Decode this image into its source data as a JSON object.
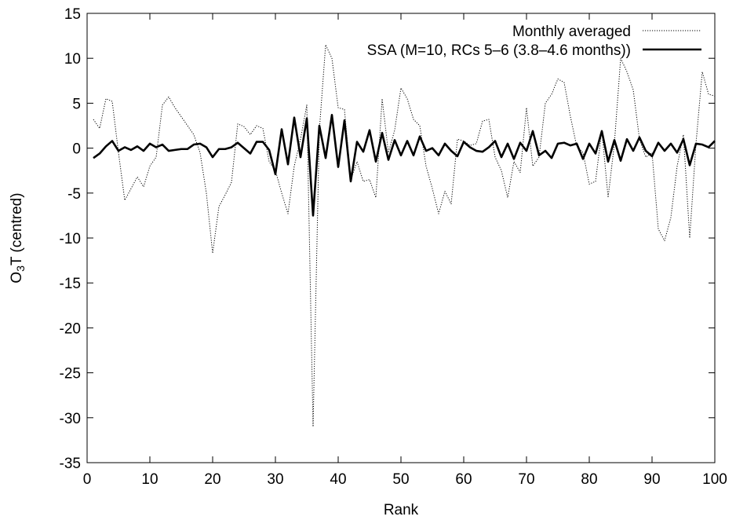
{
  "chart_data": {
    "type": "line",
    "xlabel": "Rank",
    "ylabel": {
      "main": "O",
      "sub": "3",
      "rest": "T (centred)"
    },
    "xlim": [
      0,
      100
    ],
    "ylim": [
      -35,
      15
    ],
    "xticks": [
      0,
      10,
      20,
      30,
      40,
      50,
      60,
      70,
      80,
      90,
      100
    ],
    "yticks": [
      -35,
      -30,
      -25,
      -20,
      -15,
      -10,
      -5,
      0,
      5,
      10,
      15
    ],
    "legend": "top-right",
    "x": [
      1,
      2,
      3,
      4,
      5,
      6,
      7,
      8,
      9,
      10,
      11,
      12,
      13,
      14,
      15,
      16,
      17,
      18,
      19,
      20,
      21,
      22,
      23,
      24,
      25,
      26,
      27,
      28,
      29,
      30,
      31,
      32,
      33,
      34,
      35,
      36,
      37,
      38,
      39,
      40,
      41,
      42,
      43,
      44,
      45,
      46,
      47,
      48,
      49,
      50,
      51,
      52,
      53,
      54,
      55,
      56,
      57,
      58,
      59,
      60,
      61,
      62,
      63,
      64,
      65,
      66,
      67,
      68,
      69,
      70,
      71,
      72,
      73,
      74,
      75,
      76,
      77,
      78,
      79,
      80,
      81,
      82,
      83,
      84,
      85,
      86,
      87,
      88,
      89,
      90,
      91,
      92,
      93,
      94,
      95,
      96,
      97,
      98,
      99,
      100
    ],
    "series": [
      {
        "name": "Monthly averaged",
        "color": "#000000",
        "style": "dotted",
        "values": [
          3.2,
          2.2,
          5.5,
          5.2,
          -0.5,
          -5.8,
          -4.5,
          -3.2,
          -4.3,
          -2,
          -1,
          4.8,
          5.7,
          4.5,
          3.5,
          2.5,
          1.5,
          -0.5,
          -5,
          -11.7,
          -6.5,
          -5.2,
          -3.8,
          2.7,
          2.4,
          1.5,
          2.5,
          2.2,
          -1.5,
          -2.5,
          -5,
          -7.3,
          -2,
          1,
          4.8,
          -31,
          2,
          11.5,
          10,
          4.5,
          4.3,
          -3.5,
          -1.5,
          -3.7,
          -3.5,
          -5.5,
          5.5,
          -0.5,
          2,
          6.7,
          5.5,
          3.2,
          2.5,
          -2,
          -4.5,
          -7.3,
          -4.8,
          -6.2,
          1,
          0.8,
          0.3,
          0.5,
          3,
          3.2,
          -1,
          -2.5,
          -5.5,
          -1.5,
          -2.7,
          4.5,
          -2,
          -1,
          5,
          6,
          7.7,
          7.3,
          3.5,
          0.2,
          -0.5,
          -4,
          -3.7,
          2,
          -5.5,
          0.5,
          10,
          8.5,
          6.5,
          1,
          -1,
          -0.5,
          -9,
          -10.3,
          -7.7,
          -2,
          1.5,
          -10,
          0.5,
          8.5,
          6,
          5.8
        ]
      },
      {
        "name": "SSA (M=10, RCs 5–6 (3.8–4.6 months))",
        "color": "#000000",
        "style": "solid",
        "values": [
          -1.1,
          -0.6,
          0.2,
          0.8,
          -0.3,
          0.1,
          -0.2,
          0.2,
          -0.3,
          0.5,
          0.1,
          0.4,
          -0.3,
          -0.2,
          -0.1,
          -0.1,
          0.4,
          0.5,
          0.1,
          -1,
          -0.1,
          -0.1,
          0.1,
          0.6,
          0,
          -0.6,
          0.7,
          0.7,
          -0.2,
          -2.9,
          2.1,
          -1.8,
          3.4,
          -1,
          3.3,
          -7.5,
          2.5,
          -1.1,
          3.7,
          -2.1,
          3.1,
          -3.7,
          0.7,
          -0.4,
          2,
          -1.5,
          1.7,
          -1.3,
          0.9,
          -0.8,
          0.8,
          -0.8,
          1.3,
          -0.3,
          0,
          -0.8,
          0.5,
          -0.3,
          -0.9,
          0.7,
          0.1,
          -0.3,
          -0.4,
          0.1,
          0.8,
          -1,
          0.5,
          -1.2,
          0.6,
          -0.3,
          1.9,
          -0.8,
          -0.3,
          -1.1,
          0.5,
          0.6,
          0.3,
          0.5,
          -1.2,
          0.5,
          -0.6,
          1.9,
          -1.5,
          0.9,
          -1.4,
          1,
          -0.3,
          1.2,
          -0.3,
          -0.9,
          0.6,
          -0.3,
          0.5,
          -0.5,
          1,
          -1.9,
          0.5,
          0.4,
          0.1,
          0.8
        ]
      }
    ]
  }
}
